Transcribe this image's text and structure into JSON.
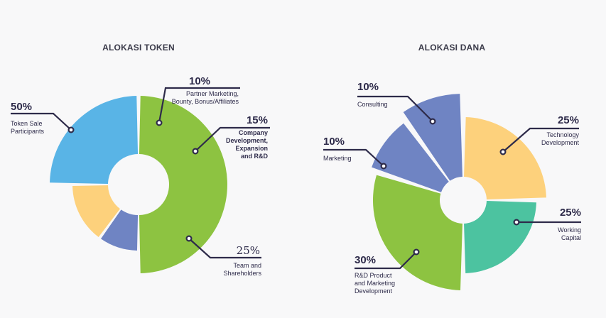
{
  "chart_data": [
    {
      "type": "pie",
      "title": "ALOKASI TOKEN",
      "slices": [
        {
          "label_lines": [
            "Token Sale",
            "Participants"
          ],
          "percent_text": "50%",
          "value": 50,
          "color": "#8dc341"
        },
        {
          "label_lines": [
            "Partner Marketing,",
            "Bounty, Bonus/Affiliates"
          ],
          "percent_text": "10%",
          "value": 10,
          "color": "#6f84c3"
        },
        {
          "label_lines": [
            "Company",
            "Development,",
            "Expansion",
            "and R&D"
          ],
          "percent_text": "15%",
          "value": 15,
          "color": "#fdd17c"
        },
        {
          "label_lines": [
            "Team and",
            "Shareholders"
          ],
          "percent_text": "25%",
          "value": 25,
          "color": "#59b4e6"
        }
      ]
    },
    {
      "type": "pie",
      "title": "ALOKASI DANA",
      "slices": [
        {
          "label_lines": [
            "Technology",
            "Development"
          ],
          "percent_text": "25%",
          "value": 25,
          "color": "#fdd17c"
        },
        {
          "label_lines": [
            "Working",
            "Capital"
          ],
          "percent_text": "25%",
          "value": 25,
          "color": "#4cc3a0"
        },
        {
          "label_lines": [
            "R&D Product",
            "and Marketing",
            "Development"
          ],
          "percent_text": "30%",
          "value": 30,
          "color": "#8dc341"
        },
        {
          "label_lines": [
            "Marketing"
          ],
          "percent_text": "10%",
          "value": 10,
          "color": "#6f84c3"
        },
        {
          "label_lines": [
            "Consulting"
          ],
          "percent_text": "10%",
          "value": 10,
          "color": "#6f84c3"
        }
      ]
    }
  ]
}
